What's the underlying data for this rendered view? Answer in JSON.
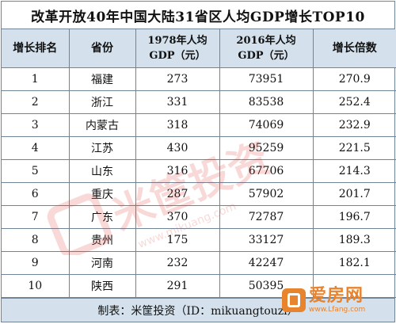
{
  "title": "改革开放40年中国大陆31省区人均GDP增长TOP10",
  "headers": {
    "rank": "增长排名",
    "province": "省份",
    "gdp1978_line1": "1978年人均",
    "gdp1978_line2": "GDP（元）",
    "gdp2016_line1": "2016年人均",
    "gdp2016_line2": "GDP（元）",
    "multiple": "增长倍数"
  },
  "rows": [
    {
      "rank": "1",
      "province": "福建",
      "gdp1978": "273",
      "gdp2016": "73951",
      "multiple": "270.9"
    },
    {
      "rank": "2",
      "province": "浙江",
      "gdp1978": "331",
      "gdp2016": "83538",
      "multiple": "252.4"
    },
    {
      "rank": "3",
      "province": "内蒙古",
      "gdp1978": "318",
      "gdp2016": "74069",
      "multiple": "232.9"
    },
    {
      "rank": "4",
      "province": "江苏",
      "gdp1978": "430",
      "gdp2016": "95259",
      "multiple": "221.5"
    },
    {
      "rank": "5",
      "province": "山东",
      "gdp1978": "316",
      "gdp2016": "67706",
      "multiple": "214.3"
    },
    {
      "rank": "6",
      "province": "重庆",
      "gdp1978": "287",
      "gdp2016": "57902",
      "multiple": "201.7"
    },
    {
      "rank": "7",
      "province": "广东",
      "gdp1978": "370",
      "gdp2016": "72787",
      "multiple": "196.7"
    },
    {
      "rank": "8",
      "province": "贵州",
      "gdp1978": "175",
      "gdp2016": "33127",
      "multiple": "189.3"
    },
    {
      "rank": "9",
      "province": "河南",
      "gdp1978": "232",
      "gdp2016": "42247",
      "multiple": "182.1"
    },
    {
      "rank": "10",
      "province": "陕西",
      "gdp1978": "291",
      "gdp2016": "50395",
      "multiple": ""
    }
  ],
  "footer": "制表：米筐投资（ID：mikuangtouzi）",
  "watermark": {
    "brand": "米筐投资",
    "url": "www.mikuang.com"
  },
  "logo": {
    "name": "爱房网",
    "url": "www.Lfang.com"
  },
  "colors": {
    "header_bg": "#d4e1ec",
    "border": "#6f8597",
    "logo_orange": "#e8832e",
    "watermark_red": "#d9342b"
  }
}
